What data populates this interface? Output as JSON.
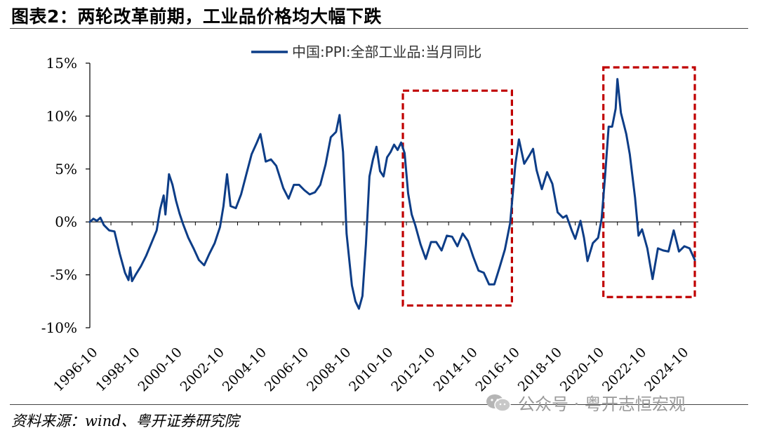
{
  "header": {
    "title": "图表2：两轮改革前期，工业品价格均大幅下跌"
  },
  "footer": {
    "source": "资料来源：wind、粤开证券研究院",
    "watermark": "公众号 · 粤开志恒宏观"
  },
  "colors": {
    "line": "#0d3d87",
    "box": "#c00000",
    "axis": "#000000"
  },
  "chart_data": {
    "type": "line",
    "legend": "中国:PPI:全部工业品:当月同比",
    "legend_position": "top-center",
    "grid": false,
    "ylim": [
      -10,
      15
    ],
    "yticks": [
      "15%",
      "10%",
      "5%",
      "0%",
      "-5%",
      "-10%"
    ],
    "ytick_values": [
      15,
      10,
      5,
      0,
      -5,
      -10
    ],
    "xticks": [
      "1996-10",
      "1998-10",
      "2000-10",
      "2002-10",
      "2004-10",
      "2006-10",
      "2008-10",
      "2010-10",
      "2012-10",
      "2014-10",
      "2016-10",
      "2018-10",
      "2020-10",
      "2022-10",
      "2024-10"
    ],
    "highlight_ranges": [
      {
        "x_start": "2011-08",
        "x_end": "2016-10",
        "y_start": 12.4,
        "y_end": -7.9
      },
      {
        "x_start": "2021-02",
        "x_end": "2025-06",
        "y_start": 14.6,
        "y_end": -7.1
      }
    ],
    "series": [
      {
        "name": "中国:PPI:全部工业品:当月同比",
        "points": [
          [
            "1996-10",
            0.0
          ],
          [
            "1996-12",
            0.3
          ],
          [
            "1997-02",
            0.1
          ],
          [
            "1997-04",
            0.4
          ],
          [
            "1997-06",
            -0.3
          ],
          [
            "1997-09",
            -0.8
          ],
          [
            "1997-12",
            -0.9
          ],
          [
            "1998-03",
            -3.0
          ],
          [
            "1998-06",
            -4.8
          ],
          [
            "1998-08",
            -5.5
          ],
          [
            "1998-09",
            -4.3
          ],
          [
            "1998-10",
            -5.6
          ],
          [
            "1998-12",
            -5.0
          ],
          [
            "1999-03",
            -4.2
          ],
          [
            "1999-06",
            -3.2
          ],
          [
            "1999-09",
            -2.0
          ],
          [
            "1999-12",
            -0.8
          ],
          [
            "2000-02",
            1.2
          ],
          [
            "2000-04",
            2.5
          ],
          [
            "2000-05",
            0.7
          ],
          [
            "2000-07",
            4.5
          ],
          [
            "2000-09",
            3.5
          ],
          [
            "2000-11",
            2.0
          ],
          [
            "2001-01",
            0.8
          ],
          [
            "2001-03",
            -0.2
          ],
          [
            "2001-06",
            -1.5
          ],
          [
            "2001-09",
            -2.5
          ],
          [
            "2001-12",
            -3.6
          ],
          [
            "2002-03",
            -4.1
          ],
          [
            "2002-06",
            -3.0
          ],
          [
            "2002-09",
            -2.0
          ],
          [
            "2002-12",
            -0.5
          ],
          [
            "2003-02",
            1.5
          ],
          [
            "2003-04",
            4.5
          ],
          [
            "2003-06",
            1.5
          ],
          [
            "2003-09",
            1.3
          ],
          [
            "2003-12",
            2.6
          ],
          [
            "2004-03",
            4.5
          ],
          [
            "2004-06",
            6.4
          ],
          [
            "2004-09",
            7.5
          ],
          [
            "2004-11",
            8.3
          ],
          [
            "2005-02",
            5.7
          ],
          [
            "2005-05",
            5.9
          ],
          [
            "2005-08",
            5.3
          ],
          [
            "2005-12",
            3.2
          ],
          [
            "2006-03",
            2.2
          ],
          [
            "2006-06",
            3.5
          ],
          [
            "2006-09",
            3.5
          ],
          [
            "2006-12",
            3.0
          ],
          [
            "2007-03",
            2.6
          ],
          [
            "2007-06",
            2.8
          ],
          [
            "2007-09",
            3.5
          ],
          [
            "2007-12",
            5.4
          ],
          [
            "2008-03",
            8.0
          ],
          [
            "2008-06",
            8.5
          ],
          [
            "2008-08",
            10.1
          ],
          [
            "2008-10",
            6.6
          ],
          [
            "2008-12",
            -1.1
          ],
          [
            "2009-03",
            -6.0
          ],
          [
            "2009-05",
            -7.5
          ],
          [
            "2009-07",
            -8.2
          ],
          [
            "2009-09",
            -7.0
          ],
          [
            "2009-11",
            -2.1
          ],
          [
            "2010-01",
            4.3
          ],
          [
            "2010-03",
            5.9
          ],
          [
            "2010-05",
            7.1
          ],
          [
            "2010-07",
            4.8
          ],
          [
            "2010-09",
            4.3
          ],
          [
            "2010-11",
            6.1
          ],
          [
            "2011-01",
            6.6
          ],
          [
            "2011-03",
            7.3
          ],
          [
            "2011-05",
            6.8
          ],
          [
            "2011-07",
            7.5
          ],
          [
            "2011-09",
            6.5
          ],
          [
            "2011-11",
            2.7
          ],
          [
            "2012-01",
            0.7
          ],
          [
            "2012-03",
            -0.3
          ],
          [
            "2012-06",
            -2.1
          ],
          [
            "2012-09",
            -3.5
          ],
          [
            "2012-12",
            -1.9
          ],
          [
            "2013-03",
            -1.9
          ],
          [
            "2013-06",
            -2.7
          ],
          [
            "2013-09",
            -1.3
          ],
          [
            "2013-12",
            -1.4
          ],
          [
            "2014-03",
            -2.3
          ],
          [
            "2014-06",
            -1.1
          ],
          [
            "2014-09",
            -1.8
          ],
          [
            "2014-12",
            -3.3
          ],
          [
            "2015-03",
            -4.6
          ],
          [
            "2015-06",
            -4.8
          ],
          [
            "2015-09",
            -5.9
          ],
          [
            "2015-12",
            -5.9
          ],
          [
            "2016-03",
            -4.3
          ],
          [
            "2016-06",
            -2.6
          ],
          [
            "2016-09",
            -0.1
          ],
          [
            "2016-12",
            5.5
          ],
          [
            "2017-02",
            7.8
          ],
          [
            "2017-05",
            5.5
          ],
          [
            "2017-08",
            6.3
          ],
          [
            "2017-10",
            6.9
          ],
          [
            "2017-12",
            4.9
          ],
          [
            "2018-03",
            3.1
          ],
          [
            "2018-06",
            4.7
          ],
          [
            "2018-09",
            3.6
          ],
          [
            "2018-12",
            0.9
          ],
          [
            "2019-03",
            0.4
          ],
          [
            "2019-05",
            0.6
          ],
          [
            "2019-08",
            -0.8
          ],
          [
            "2019-10",
            -1.6
          ],
          [
            "2020-01",
            0.1
          ],
          [
            "2020-03",
            -1.5
          ],
          [
            "2020-05",
            -3.7
          ],
          [
            "2020-08",
            -2.0
          ],
          [
            "2020-11",
            -1.5
          ],
          [
            "2021-01",
            0.3
          ],
          [
            "2021-03",
            4.4
          ],
          [
            "2021-05",
            9.0
          ],
          [
            "2021-07",
            9.0
          ],
          [
            "2021-09",
            10.7
          ],
          [
            "2021-10",
            13.5
          ],
          [
            "2021-12",
            10.3
          ],
          [
            "2022-03",
            8.3
          ],
          [
            "2022-05",
            6.4
          ],
          [
            "2022-08",
            2.3
          ],
          [
            "2022-10",
            -1.3
          ],
          [
            "2022-12",
            -0.7
          ],
          [
            "2023-03",
            -2.5
          ],
          [
            "2023-06",
            -5.4
          ],
          [
            "2023-09",
            -2.5
          ],
          [
            "2023-12",
            -2.7
          ],
          [
            "2024-03",
            -2.8
          ],
          [
            "2024-06",
            -0.8
          ],
          [
            "2024-09",
            -2.8
          ],
          [
            "2024-12",
            -2.3
          ],
          [
            "2025-03",
            -2.5
          ],
          [
            "2025-06",
            -3.6
          ]
        ]
      }
    ]
  }
}
